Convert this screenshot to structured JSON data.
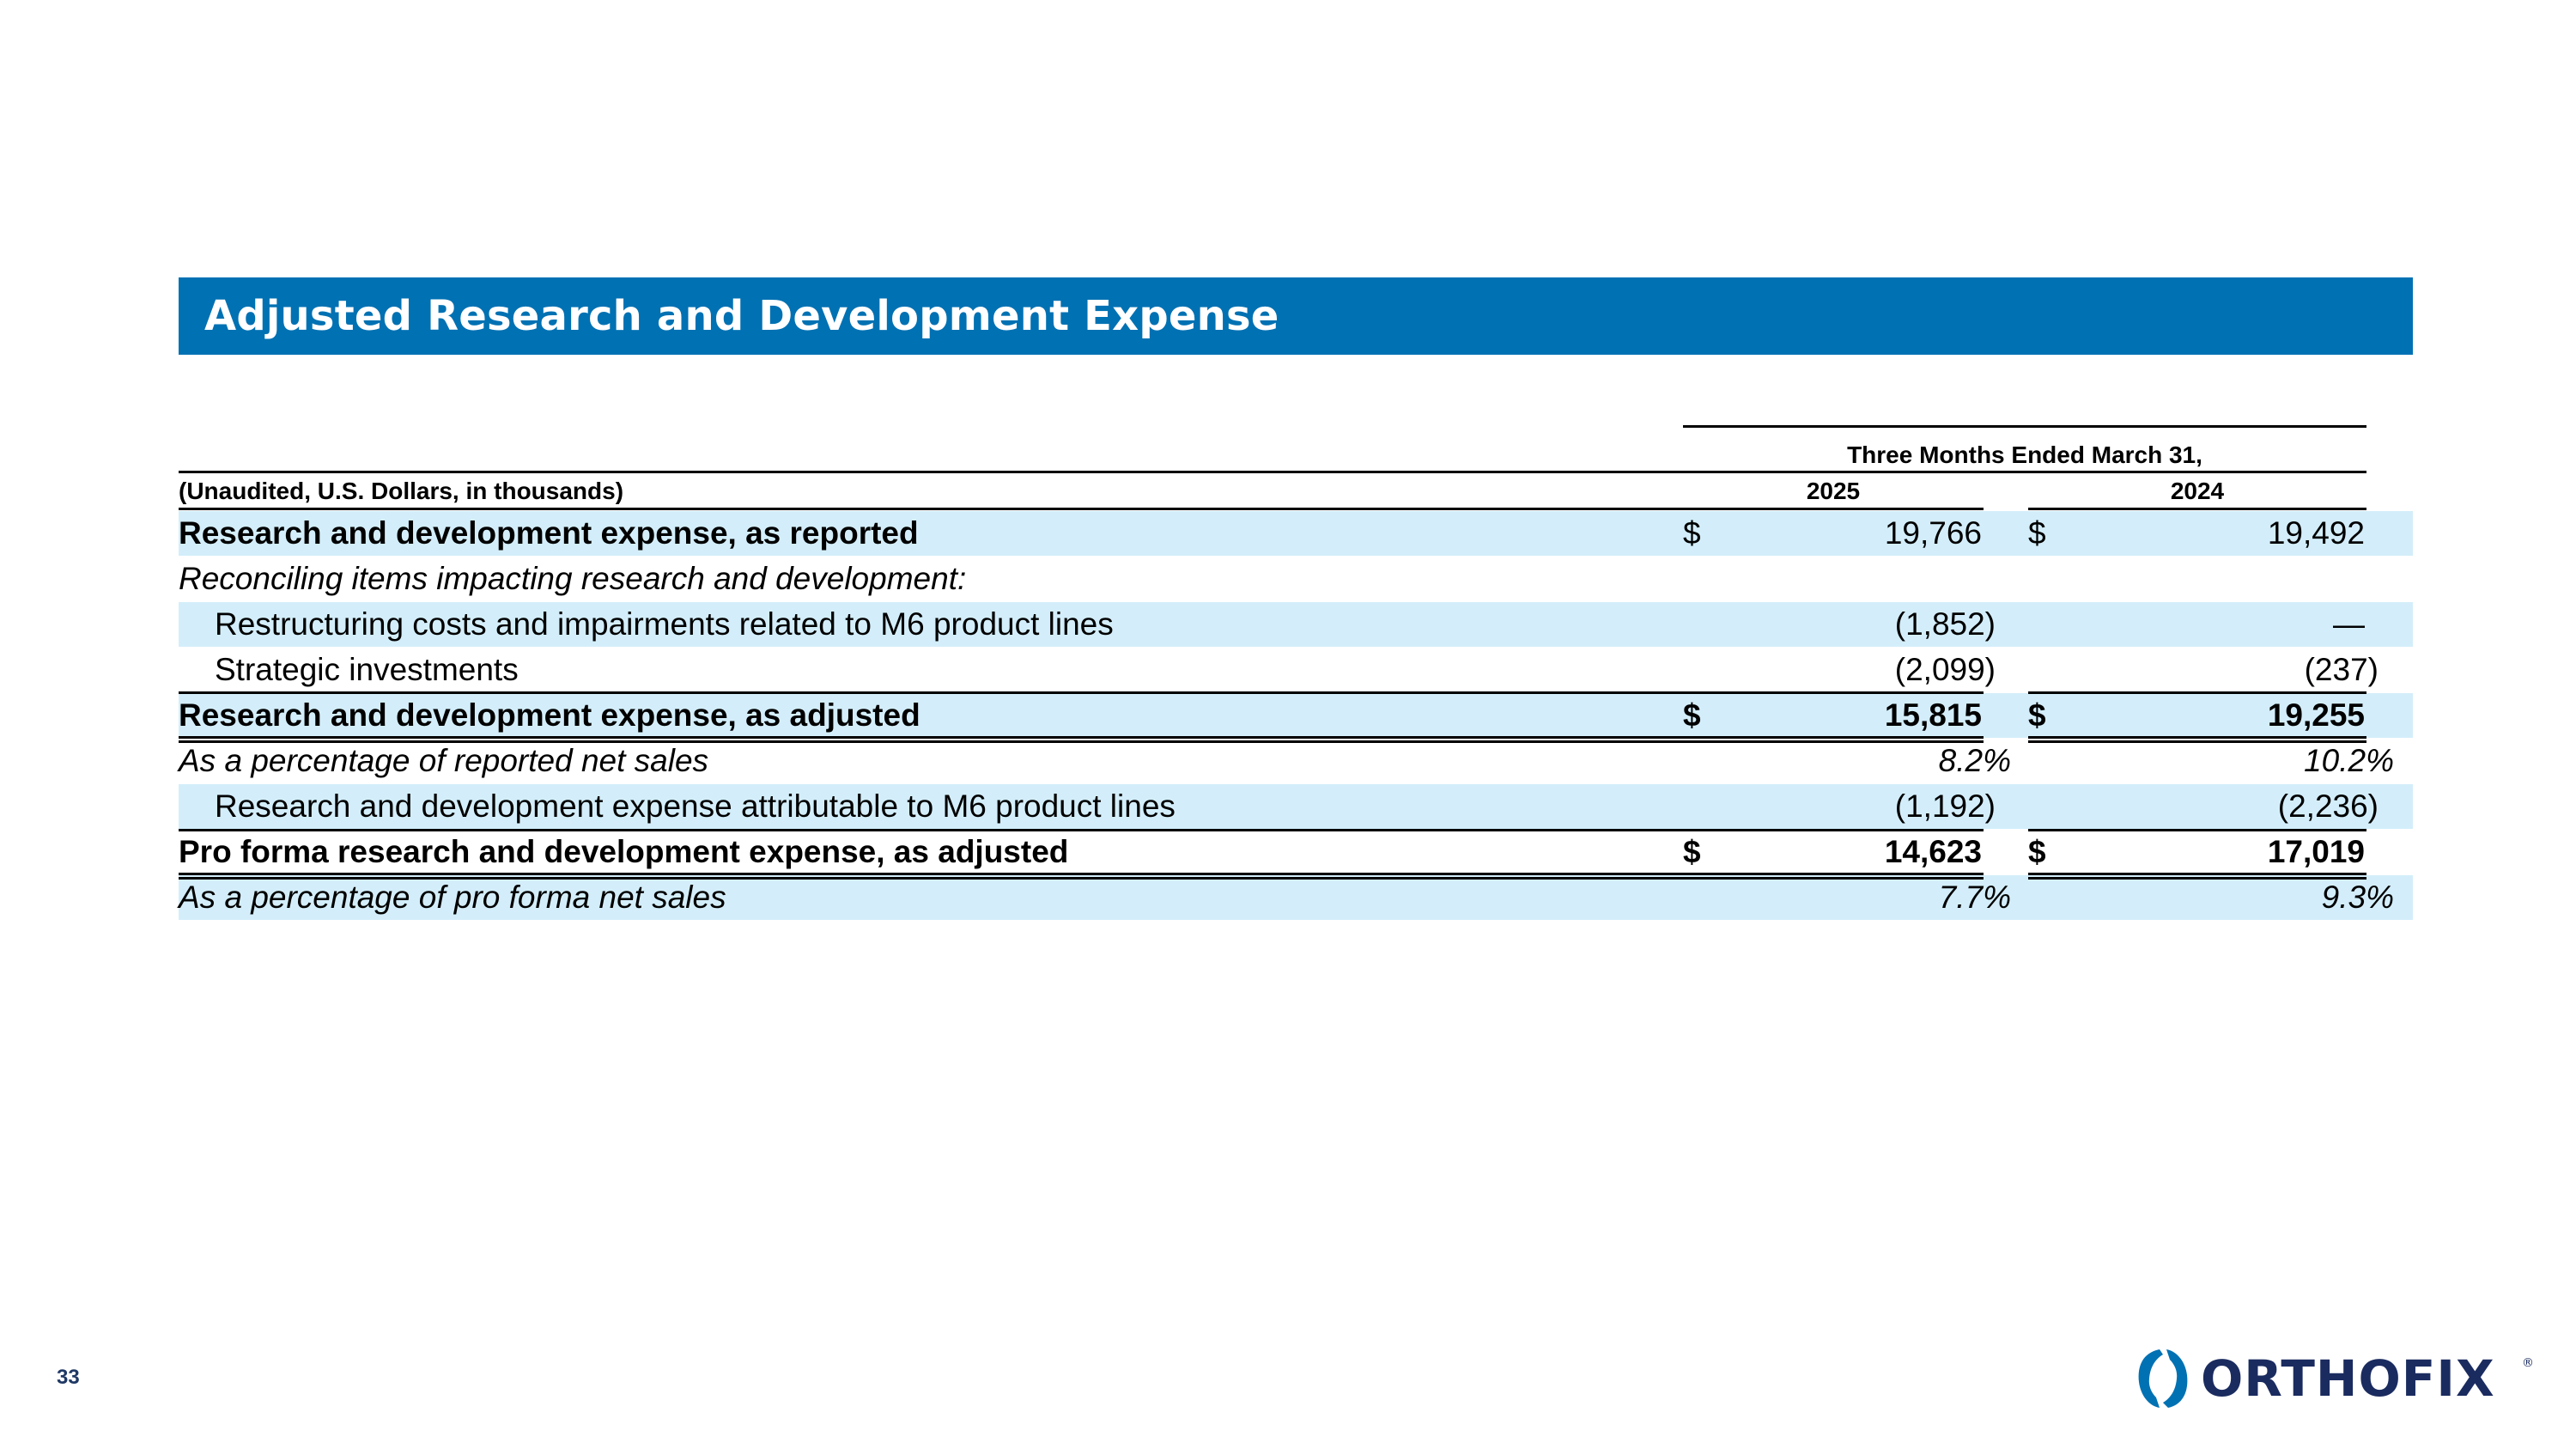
{
  "slide": {
    "title": "Adjusted Research and Development Expense",
    "page_number": "33"
  },
  "table": {
    "period_header": "Three Months Ended March 31,",
    "units_label": "(Unaudited, U.S. Dollars, in thousands)",
    "col_2025": "2025",
    "col_2024": "2024",
    "currency": "$",
    "rows": [
      {
        "label": "Research and development expense, as reported",
        "v2025": "19,766",
        "v2024": "19,492"
      },
      {
        "label": "Reconciling items impacting research and development:"
      },
      {
        "label": "Restructuring costs and impairments related to M6 product lines",
        "v2025": "(1,852)",
        "v2024": "—"
      },
      {
        "label": "Strategic investments",
        "v2025": "(2,099)",
        "v2024": "(237)"
      },
      {
        "label": "Research and development expense, as adjusted",
        "v2025": "15,815",
        "v2024": "19,255"
      },
      {
        "label": "As a percentage of reported net sales",
        "v2025": "8.2%",
        "v2024": "10.2%"
      },
      {
        "label": "Research and development expense attributable to M6 product lines",
        "v2025": "(1,192)",
        "v2024": "(2,236)"
      },
      {
        "label": "Pro forma research and development expense, as adjusted",
        "v2025": "14,623",
        "v2024": "17,019"
      },
      {
        "label": "As a percentage of pro forma net sales",
        "v2025": "7.7%",
        "v2024": "9.3%"
      }
    ]
  },
  "logo": {
    "text": "ORTHOFIX",
    "registered": "®",
    "brand_color": "#1a2b5f",
    "accent_color": "#0071b3"
  },
  "colors": {
    "title_bar": "#0071b3",
    "row_band": "#d3eefa"
  }
}
